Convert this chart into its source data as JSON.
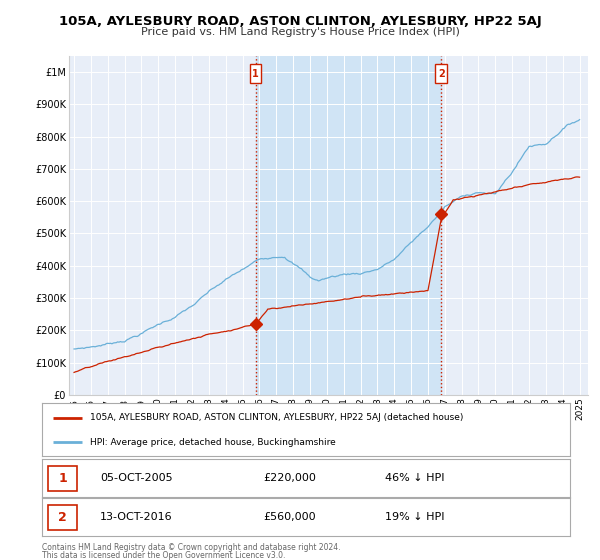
{
  "title": "105A, AYLESBURY ROAD, ASTON CLINTON, AYLESBURY, HP22 5AJ",
  "subtitle": "Price paid vs. HM Land Registry's House Price Index (HPI)",
  "ylim": [
    0,
    1050000
  ],
  "xlim_start": 1994.7,
  "xlim_end": 2025.5,
  "background_color": "#ffffff",
  "plot_bg_color": "#e8eef8",
  "grid_color": "#ffffff",
  "hpi_color": "#6ab0d8",
  "price_color": "#cc2200",
  "vline_color": "#cc2200",
  "shade_color": "#d0e4f5",
  "marker1_x": 2005.77,
  "marker1_y": 220000,
  "marker1_label": "1",
  "marker1_date": "05-OCT-2005",
  "marker1_price": "£220,000",
  "marker1_pct": "46% ↓ HPI",
  "marker2_x": 2016.79,
  "marker2_y": 560000,
  "marker2_label": "2",
  "marker2_date": "13-OCT-2016",
  "marker2_price": "£560,000",
  "marker2_pct": "19% ↓ HPI",
  "legend_line1": "105A, AYLESBURY ROAD, ASTON CLINTON, AYLESBURY, HP22 5AJ (detached house)",
  "legend_line2": "HPI: Average price, detached house, Buckinghamshire",
  "footer1": "Contains HM Land Registry data © Crown copyright and database right 2024.",
  "footer2": "This data is licensed under the Open Government Licence v3.0.",
  "yticks": [
    0,
    100000,
    200000,
    300000,
    400000,
    500000,
    600000,
    700000,
    800000,
    900000,
    1000000
  ],
  "ytick_labels": [
    "£0",
    "£100K",
    "£200K",
    "£300K",
    "£400K",
    "£500K",
    "£600K",
    "£700K",
    "£800K",
    "£900K",
    "£1M"
  ],
  "xticks": [
    1995,
    1996,
    1997,
    1998,
    1999,
    2000,
    2001,
    2002,
    2003,
    2004,
    2005,
    2006,
    2007,
    2008,
    2009,
    2010,
    2011,
    2012,
    2013,
    2014,
    2015,
    2016,
    2017,
    2018,
    2019,
    2020,
    2021,
    2022,
    2023,
    2024,
    2025
  ]
}
